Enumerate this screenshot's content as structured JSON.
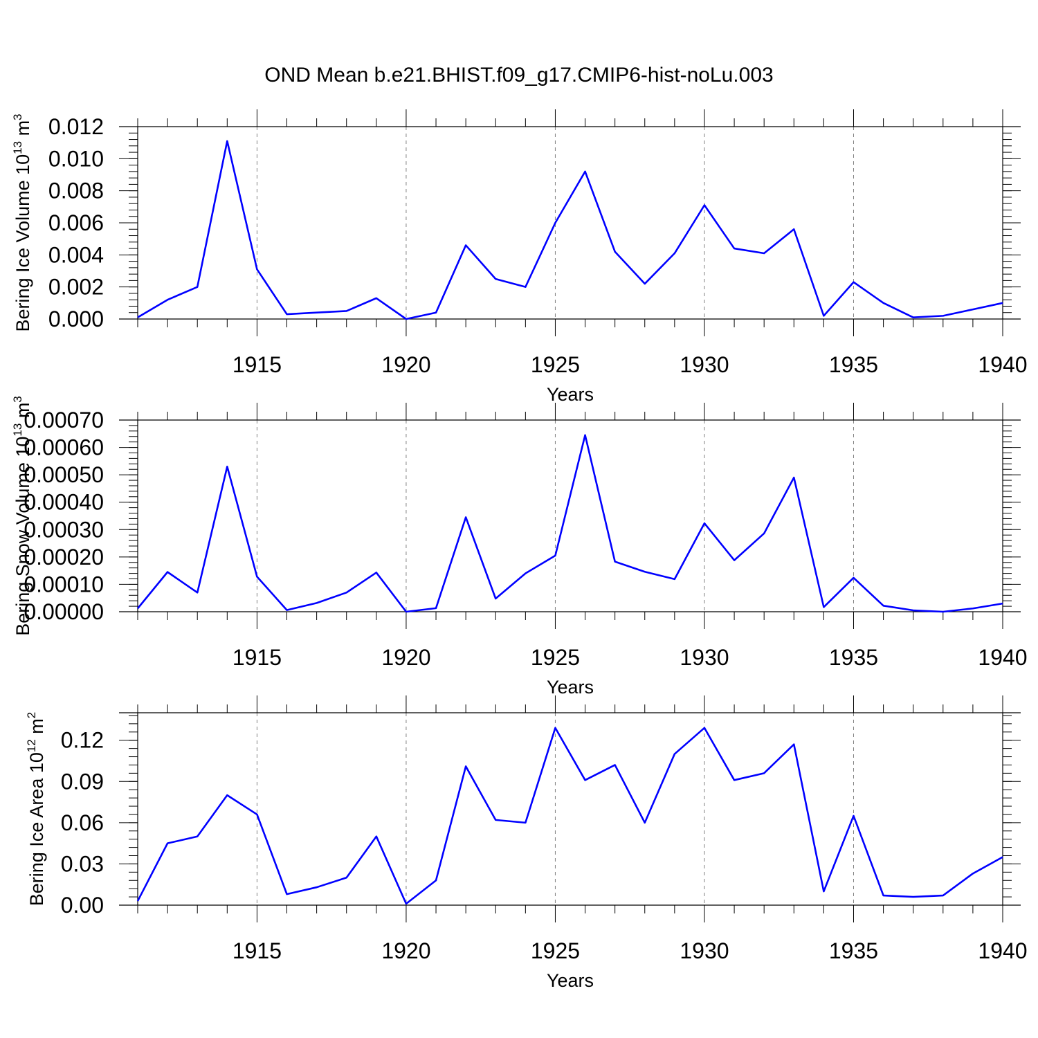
{
  "title": "OND Mean b.e21.BHIST.f09_g17.CMIP6-hist-noLu.003",
  "line_color": "#0000ff",
  "grid_color": "#808080",
  "chart_data": [
    {
      "type": "line",
      "ylabel_main": "Bering Ice Volume 10",
      "ylabel_exp": "13",
      "ylabel_unit": "m",
      "ylabel_unit_exp": "3",
      "xlabel": "Years",
      "xlim": [
        1911,
        1940
      ],
      "ylim": [
        0,
        0.012
      ],
      "yticks": [
        0,
        0.002,
        0.004,
        0.006,
        0.008,
        0.01,
        0.012
      ],
      "ytick_labels": [
        "0.000",
        "0.002",
        "0.004",
        "0.006",
        "0.008",
        "0.010",
        "0.012"
      ],
      "xticks": [
        1915,
        1920,
        1925,
        1930,
        1935,
        1940
      ],
      "xtick_labels": [
        "1915",
        "1920",
        "1925",
        "1930",
        "1935",
        "1940"
      ],
      "x": [
        1911,
        1912,
        1913,
        1914,
        1915,
        1916,
        1917,
        1918,
        1919,
        1920,
        1921,
        1922,
        1923,
        1924,
        1925,
        1926,
        1927,
        1928,
        1929,
        1930,
        1931,
        1932,
        1933,
        1934,
        1935,
        1936,
        1937,
        1938,
        1939,
        1940
      ],
      "values": [
        0.0001,
        0.0012,
        0.002,
        0.0111,
        0.0031,
        0.0003,
        0.0004,
        0.0005,
        0.0013,
        0.0,
        0.0004,
        0.0046,
        0.0025,
        0.002,
        0.006,
        0.0092,
        0.0042,
        0.0022,
        0.0041,
        0.0071,
        0.0044,
        0.0041,
        0.0056,
        0.0002,
        0.0023,
        0.001,
        0.0001,
        0.0002,
        0.0006,
        0.001
      ]
    },
    {
      "type": "line",
      "ylabel_main": "Bering Snow Volume 10",
      "ylabel_exp": "13",
      "ylabel_unit": "m",
      "ylabel_unit_exp": "3",
      "xlabel": "Years",
      "xlim": [
        1911,
        1940
      ],
      "ylim": [
        0,
        0.0007
      ],
      "yticks": [
        0,
        0.0001,
        0.0002,
        0.0003,
        0.0004,
        0.0005,
        0.0006,
        0.0007
      ],
      "ytick_labels": [
        "0.00000",
        "0.00010",
        "0.00020",
        "0.00030",
        "0.00040",
        "0.00050",
        "0.00060",
        "0.00070"
      ],
      "xticks": [
        1915,
        1920,
        1925,
        1930,
        1935,
        1940
      ],
      "xtick_labels": [
        "1915",
        "1920",
        "1925",
        "1930",
        "1935",
        "1940"
      ],
      "x": [
        1911,
        1912,
        1913,
        1914,
        1915,
        1916,
        1917,
        1918,
        1919,
        1920,
        1921,
        1922,
        1923,
        1924,
        1925,
        1926,
        1927,
        1928,
        1929,
        1930,
        1931,
        1932,
        1933,
        1934,
        1935,
        1936,
        1937,
        1938,
        1939,
        1940
      ],
      "values": [
        1.2e-05,
        0.000145,
        7e-05,
        0.00053,
        0.000128,
        6e-06,
        3.2e-05,
        7e-05,
        0.000143,
        0.0,
        1.3e-05,
        0.000345,
        4.8e-05,
        0.00014,
        0.000205,
        0.000645,
        0.000183,
        0.000146,
        0.000119,
        0.000323,
        0.000188,
        0.000286,
        0.00049,
        1.7e-05,
        0.000124,
        2.2e-05,
        5e-06,
        0.0,
        1.2e-05,
        3e-05
      ]
    },
    {
      "type": "line",
      "ylabel_main": "Bering Ice Area 10",
      "ylabel_exp": "12",
      "ylabel_unit": "m",
      "ylabel_unit_exp": "2",
      "xlabel": "Years",
      "xlim": [
        1911,
        1940
      ],
      "ylim": [
        0,
        0.14
      ],
      "yticks": [
        0,
        0.03,
        0.06,
        0.09,
        0.12
      ],
      "ytick_labels": [
        "0.00",
        "0.03",
        "0.06",
        "0.09",
        "0.12"
      ],
      "xticks": [
        1915,
        1920,
        1925,
        1930,
        1935,
        1940
      ],
      "xtick_labels": [
        "1915",
        "1920",
        "1925",
        "1930",
        "1935",
        "1940"
      ],
      "x": [
        1911,
        1912,
        1913,
        1914,
        1915,
        1916,
        1917,
        1918,
        1919,
        1920,
        1921,
        1922,
        1923,
        1924,
        1925,
        1926,
        1927,
        1928,
        1929,
        1930,
        1931,
        1932,
        1933,
        1934,
        1935,
        1936,
        1937,
        1938,
        1939,
        1940
      ],
      "values": [
        0.003,
        0.045,
        0.05,
        0.08,
        0.066,
        0.008,
        0.013,
        0.02,
        0.05,
        0.001,
        0.018,
        0.101,
        0.062,
        0.06,
        0.129,
        0.091,
        0.102,
        0.06,
        0.11,
        0.129,
        0.091,
        0.096,
        0.117,
        0.01,
        0.065,
        0.007,
        0.006,
        0.007,
        0.023,
        0.035
      ]
    }
  ]
}
